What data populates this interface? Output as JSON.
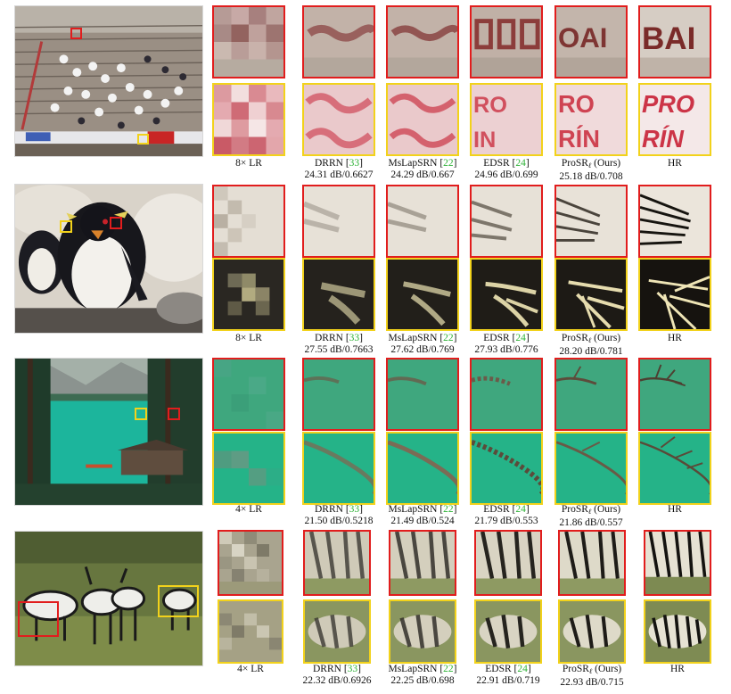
{
  "figure": {
    "colors": {
      "red_box": "#e11d1d",
      "yellow_box": "#f2d21b",
      "citation": "#31b33a"
    },
    "rows": [
      {
        "scene": "stadium",
        "captions": [
          {
            "method": "8× LR",
            "cite": "",
            "metrics": ""
          },
          {
            "method": "DRRN",
            "cite": "33",
            "metrics": "24.31 dB/0.6627"
          },
          {
            "method": "MsLapSRN",
            "cite": "22",
            "metrics": "24.29 dB/0.667"
          },
          {
            "method": "EDSR",
            "cite": "24",
            "metrics": "24.96 dB/0.699"
          },
          {
            "method": "ProSR",
            "sub": "ℓ",
            "suffix": " (Ours)",
            "metrics": "25.18 dB/0.708"
          },
          {
            "method": "HR",
            "cite": "",
            "metrics": ""
          }
        ]
      },
      {
        "scene": "penguin",
        "captions": [
          {
            "method": "8× LR",
            "cite": "",
            "metrics": ""
          },
          {
            "method": "DRRN",
            "cite": "33",
            "metrics": "27.55 dB/0.7663"
          },
          {
            "method": "MsLapSRN",
            "cite": "22",
            "metrics": "27.62 dB/0.769"
          },
          {
            "method": "EDSR",
            "cite": "24",
            "metrics": "27.93 dB/0.776"
          },
          {
            "method": "ProSR",
            "sub": "ℓ",
            "suffix": " (Ours)",
            "metrics": "28.20 dB/0.781"
          },
          {
            "method": "HR",
            "cite": "",
            "metrics": ""
          }
        ]
      },
      {
        "scene": "lake",
        "captions": [
          {
            "method": "4× LR",
            "cite": "",
            "metrics": ""
          },
          {
            "method": "DRRN",
            "cite": "33",
            "metrics": "21.50 dB/0.5218"
          },
          {
            "method": "MsLapSRN",
            "cite": "22",
            "metrics": "21.49 dB/0.524"
          },
          {
            "method": "EDSR",
            "cite": "24",
            "metrics": "21.79 dB/0.553"
          },
          {
            "method": "ProSR",
            "sub": "ℓ",
            "suffix": " (Ours)",
            "metrics": "21.86 dB/0.557"
          },
          {
            "method": "HR",
            "cite": "",
            "metrics": ""
          }
        ]
      },
      {
        "scene": "zebras",
        "captions": [
          {
            "method": "4× LR",
            "cite": "",
            "metrics": ""
          },
          {
            "method": "DRRN",
            "cite": "33",
            "metrics": "22.32 dB/0.6926"
          },
          {
            "method": "MsLapSRN",
            "cite": "22",
            "metrics": "22.25 dB/0.698"
          },
          {
            "method": "EDSR",
            "cite": "24",
            "metrics": "22.91 dB/0.719"
          },
          {
            "method": "ProSR",
            "sub": "ℓ",
            "suffix": " (Ours)",
            "metrics": "22.93 dB/0.715"
          },
          {
            "method": "HR",
            "cite": "",
            "metrics": ""
          }
        ]
      }
    ]
  }
}
